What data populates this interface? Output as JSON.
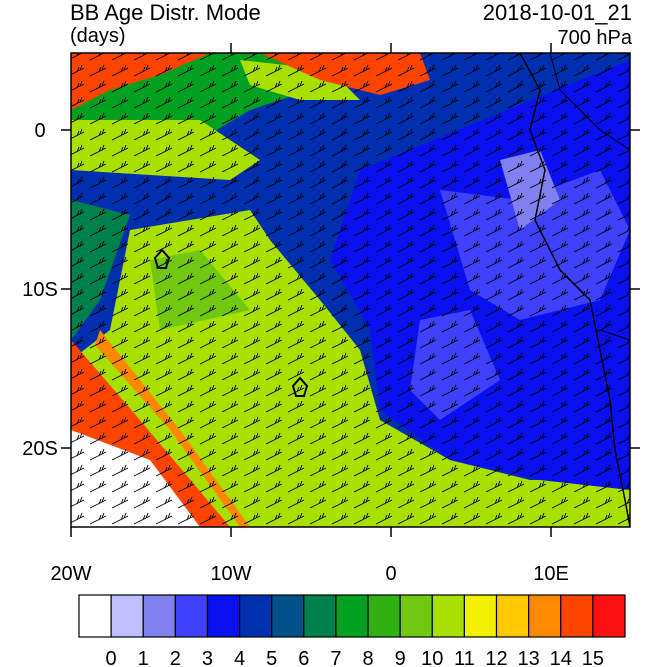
{
  "header": {
    "title": "BB Age Distr. Mode",
    "units": "(days)",
    "time": "2018-10-01_21",
    "level": "700 hPa"
  },
  "axes": {
    "lat_labels": [
      "0",
      "10S",
      "20S"
    ],
    "lon_labels": [
      "20W",
      "10W",
      "0",
      "10E"
    ]
  },
  "colorbar": {
    "labels": [
      0,
      1,
      2,
      3,
      4,
      5,
      6,
      7,
      8,
      9,
      10,
      11,
      12,
      13,
      14,
      15
    ],
    "colors": [
      "#ffffff",
      "#bfbfff",
      "#8080f0",
      "#4040ff",
      "#0a10f0",
      "#0030b0",
      "#00508a",
      "#00804a",
      "#00a020",
      "#30b010",
      "#70c810",
      "#a8e000",
      "#f0f000",
      "#ffc800",
      "#ff8800",
      "#ff4400",
      "#ff1010"
    ]
  }
}
